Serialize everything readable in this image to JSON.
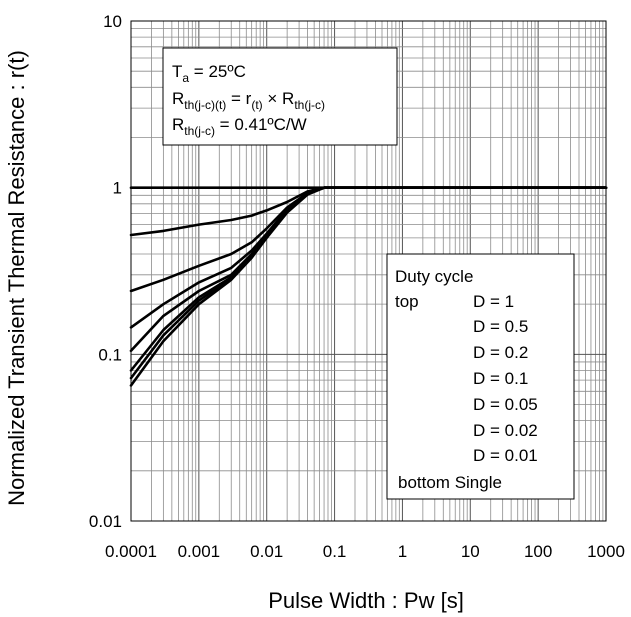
{
  "chart_data": {
    "type": "line",
    "title": "",
    "xlabel": "Pulse Width : Pw [s]",
    "ylabel": "Normalized Transient Thermal Resistance : r(t)",
    "x_scale": "log",
    "y_scale": "log",
    "xlim": [
      0.0001,
      1000
    ],
    "ylim": [
      0.01,
      10
    ],
    "grid": true,
    "x_ticks": [
      "0.0001",
      "0.001",
      "0.01",
      "0.1",
      "1",
      "10",
      "100",
      "1000"
    ],
    "y_ticks": [
      "0.01",
      "0.1",
      "1",
      "10"
    ],
    "conditions": {
      "ta": {
        "sym": "T",
        "sub": "a",
        "rest": " = 25ºC"
      },
      "formula": {
        "sym": "R",
        "sub": "th(j-c)(t)",
        "mid": " = r",
        "sub2": "(t)",
        "mid2": " × R",
        "sub3": "th(j-c)"
      },
      "rth": {
        "sym": "R",
        "sub": "th(j-c)",
        "rest": " = 0.41ºC/W"
      }
    },
    "legend": {
      "position": "bottom-right",
      "title": "Duty cycle",
      "top_label": "top",
      "bottom_label": "bottom Single",
      "entries": [
        "D = 1",
        "D = 0.5",
        "D = 0.2",
        "D = 0.1",
        "D = 0.05",
        "D = 0.02",
        "D = 0.01"
      ]
    },
    "series": [
      {
        "name": "D = 1",
        "x": [
          0.0001,
          1000
        ],
        "y": [
          1,
          1
        ]
      },
      {
        "name": "D = 0.5",
        "x": [
          0.0001,
          0.0003,
          0.001,
          0.003,
          0.006,
          0.01,
          0.02,
          0.04,
          0.07,
          0.1,
          1000
        ],
        "y": [
          0.52,
          0.55,
          0.6,
          0.64,
          0.68,
          0.73,
          0.82,
          0.95,
          1,
          1,
          1
        ]
      },
      {
        "name": "D = 0.2",
        "x": [
          0.0001,
          0.0003,
          0.001,
          0.003,
          0.006,
          0.01,
          0.02,
          0.04,
          0.07,
          0.1,
          1000
        ],
        "y": [
          0.24,
          0.28,
          0.34,
          0.4,
          0.47,
          0.57,
          0.76,
          0.93,
          1,
          1,
          1
        ]
      },
      {
        "name": "D = 0.1",
        "x": [
          0.0001,
          0.0003,
          0.001,
          0.003,
          0.006,
          0.01,
          0.02,
          0.04,
          0.07,
          0.1,
          1000
        ],
        "y": [
          0.145,
          0.2,
          0.27,
          0.33,
          0.42,
          0.53,
          0.74,
          0.92,
          1,
          1,
          1
        ]
      },
      {
        "name": "D = 0.05",
        "x": [
          0.0001,
          0.0003,
          0.001,
          0.003,
          0.006,
          0.01,
          0.02,
          0.04,
          0.07,
          0.1,
          1000
        ],
        "y": [
          0.105,
          0.17,
          0.24,
          0.3,
          0.4,
          0.52,
          0.73,
          0.92,
          1,
          1,
          1
        ]
      },
      {
        "name": "D = 0.02",
        "x": [
          0.0001,
          0.0003,
          0.001,
          0.003,
          0.006,
          0.01,
          0.02,
          0.04,
          0.07,
          0.1,
          1000
        ],
        "y": [
          0.08,
          0.14,
          0.22,
          0.29,
          0.39,
          0.51,
          0.72,
          0.92,
          1,
          1,
          1
        ]
      },
      {
        "name": "D = 0.01",
        "x": [
          0.0001,
          0.0003,
          0.001,
          0.003,
          0.006,
          0.01,
          0.02,
          0.04,
          0.07,
          0.1,
          1000
        ],
        "y": [
          0.072,
          0.13,
          0.21,
          0.285,
          0.385,
          0.51,
          0.72,
          0.92,
          1,
          1,
          1
        ]
      },
      {
        "name": "Single",
        "x": [
          0.0001,
          0.0003,
          0.001,
          0.003,
          0.006,
          0.01,
          0.02,
          0.04,
          0.07,
          0.1,
          1000
        ],
        "y": [
          0.065,
          0.12,
          0.2,
          0.28,
          0.38,
          0.5,
          0.71,
          0.91,
          1,
          1,
          1
        ]
      }
    ]
  }
}
